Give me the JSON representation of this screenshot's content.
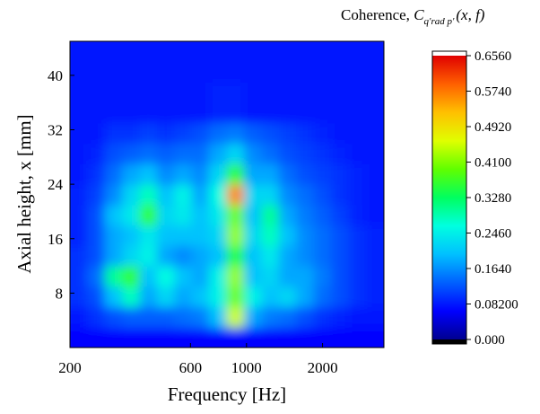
{
  "chart_data": {
    "type": "heatmap",
    "xlabel": "Frequency [Hz]",
    "ylabel": "Axial height, x [mm]",
    "colorbar_title": {
      "prefix": "Coherence, ",
      "symbol": "C",
      "subscript": "q′rad p′",
      "suffix": "(x, f)"
    },
    "x_log": true,
    "xlim": [
      200,
      3500
    ],
    "xticks": [
      200,
      600,
      1000,
      2000
    ],
    "ylim": [
      0,
      45
    ],
    "yticks": [
      8,
      16,
      24,
      32,
      40
    ],
    "x_bins": [
      200,
      234,
      275,
      322,
      377,
      442,
      518,
      607,
      711,
      834,
      977,
      1145,
      1342,
      1573,
      1844,
      2161,
      2533,
      2968,
      3500
    ],
    "y_bins": [
      0,
      3,
      6,
      9,
      12,
      15,
      18,
      21,
      24,
      27,
      30,
      33,
      36,
      39,
      42,
      45
    ],
    "z": [
      [
        0.07,
        0.07,
        0.07,
        0.07,
        0.07,
        0.07,
        0.07,
        0.07,
        0.07,
        0.07,
        0.07,
        0.07,
        0.07,
        0.07,
        0.07,
        0.07,
        0.07,
        0.07
      ],
      [
        0.08,
        0.1,
        0.12,
        0.13,
        0.13,
        0.13,
        0.14,
        0.15,
        0.2,
        0.45,
        0.18,
        0.15,
        0.14,
        0.12,
        0.1,
        0.09,
        0.08,
        0.08
      ],
      [
        0.1,
        0.12,
        0.2,
        0.28,
        0.18,
        0.22,
        0.18,
        0.2,
        0.25,
        0.4,
        0.25,
        0.2,
        0.22,
        0.18,
        0.14,
        0.12,
        0.1,
        0.09
      ],
      [
        0.1,
        0.14,
        0.3,
        0.36,
        0.2,
        0.26,
        0.2,
        0.18,
        0.25,
        0.42,
        0.2,
        0.22,
        0.18,
        0.18,
        0.15,
        0.12,
        0.1,
        0.09
      ],
      [
        0.1,
        0.12,
        0.18,
        0.22,
        0.25,
        0.18,
        0.16,
        0.18,
        0.2,
        0.35,
        0.2,
        0.24,
        0.18,
        0.16,
        0.14,
        0.12,
        0.1,
        0.09
      ],
      [
        0.09,
        0.12,
        0.18,
        0.2,
        0.24,
        0.2,
        0.2,
        0.2,
        0.22,
        0.42,
        0.22,
        0.28,
        0.2,
        0.16,
        0.14,
        0.12,
        0.1,
        0.09
      ],
      [
        0.09,
        0.12,
        0.2,
        0.24,
        0.36,
        0.22,
        0.24,
        0.2,
        0.24,
        0.4,
        0.2,
        0.3,
        0.18,
        0.15,
        0.13,
        0.11,
        0.09,
        0.08
      ],
      [
        0.09,
        0.11,
        0.16,
        0.22,
        0.28,
        0.2,
        0.25,
        0.18,
        0.26,
        0.56,
        0.22,
        0.22,
        0.16,
        0.14,
        0.12,
        0.1,
        0.09,
        0.08
      ],
      [
        0.08,
        0.1,
        0.14,
        0.18,
        0.2,
        0.16,
        0.18,
        0.16,
        0.22,
        0.36,
        0.18,
        0.18,
        0.14,
        0.12,
        0.11,
        0.1,
        0.09,
        0.08
      ],
      [
        0.08,
        0.09,
        0.12,
        0.13,
        0.14,
        0.13,
        0.14,
        0.14,
        0.18,
        0.22,
        0.16,
        0.14,
        0.12,
        0.11,
        0.1,
        0.09,
        0.08,
        0.08
      ],
      [
        0.08,
        0.08,
        0.1,
        0.1,
        0.11,
        0.1,
        0.11,
        0.12,
        0.14,
        0.15,
        0.13,
        0.12,
        0.11,
        0.1,
        0.09,
        0.08,
        0.08,
        0.08
      ],
      [
        0.08,
        0.08,
        0.08,
        0.08,
        0.08,
        0.08,
        0.08,
        0.08,
        0.09,
        0.09,
        0.08,
        0.08,
        0.08,
        0.08,
        0.08,
        0.08,
        0.08,
        0.08
      ],
      [
        0.08,
        0.08,
        0.08,
        0.08,
        0.08,
        0.08,
        0.08,
        0.08,
        0.09,
        0.09,
        0.08,
        0.08,
        0.08,
        0.08,
        0.08,
        0.08,
        0.08,
        0.08
      ],
      [
        0.08,
        0.08,
        0.08,
        0.08,
        0.08,
        0.08,
        0.08,
        0.08,
        0.08,
        0.08,
        0.08,
        0.08,
        0.08,
        0.08,
        0.08,
        0.08,
        0.08,
        0.08
      ],
      [
        0.08,
        0.08,
        0.08,
        0.08,
        0.08,
        0.08,
        0.08,
        0.08,
        0.08,
        0.08,
        0.08,
        0.08,
        0.08,
        0.08,
        0.08,
        0.08,
        0.08,
        0.08
      ]
    ],
    "zlim": [
      0,
      0.656
    ],
    "zticks": [
      {
        "value": 0,
        "label": "0.000"
      },
      {
        "value": 0.082,
        "label": "0.08200"
      },
      {
        "value": 0.164,
        "label": "0.1640"
      },
      {
        "value": 0.246,
        "label": "0.2460"
      },
      {
        "value": 0.328,
        "label": "0.3280"
      },
      {
        "value": 0.41,
        "label": "0.4100"
      },
      {
        "value": 0.492,
        "label": "0.4920"
      },
      {
        "value": 0.574,
        "label": "0.5740"
      },
      {
        "value": 0.656,
        "label": "0.6560"
      }
    ],
    "colormap": [
      "#000090",
      "#0000ff",
      "#0060ff",
      "#00c0ff",
      "#00ffe0",
      "#00ff60",
      "#60ff00",
      "#e0ff00",
      "#ffc000",
      "#ff6000",
      "#e00000"
    ],
    "under_color": "#000000",
    "over_color": "#ffffff"
  }
}
